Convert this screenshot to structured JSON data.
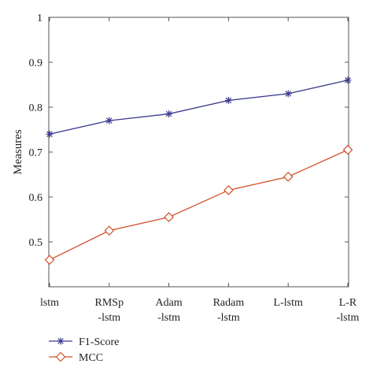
{
  "chart_data": {
    "type": "line",
    "ylabel": "Measures",
    "xlabel": "",
    "ylim": [
      0.4,
      1.0
    ],
    "yticks": [
      "0.5",
      "0.6",
      "0.7",
      "0.8",
      "0.9",
      "1"
    ],
    "categories": [
      [
        "lstm"
      ],
      [
        "RMSp",
        "-lstm"
      ],
      [
        "Adam",
        "-lstm"
      ],
      [
        "Radam",
        "-lstm"
      ],
      [
        "L-lstm"
      ],
      [
        "L-R",
        "-lstm"
      ]
    ],
    "series": [
      {
        "name": "F1-Score",
        "color": "#3b3b8f",
        "marker": "asterisk",
        "values": [
          0.74,
          0.77,
          0.785,
          0.815,
          0.83,
          0.86
        ]
      },
      {
        "name": "MCC",
        "color": "#d2502a",
        "marker": "diamond",
        "values": [
          0.46,
          0.525,
          0.555,
          0.615,
          0.645,
          0.705
        ]
      }
    ],
    "legend": "bottom-left",
    "grid": false
  }
}
